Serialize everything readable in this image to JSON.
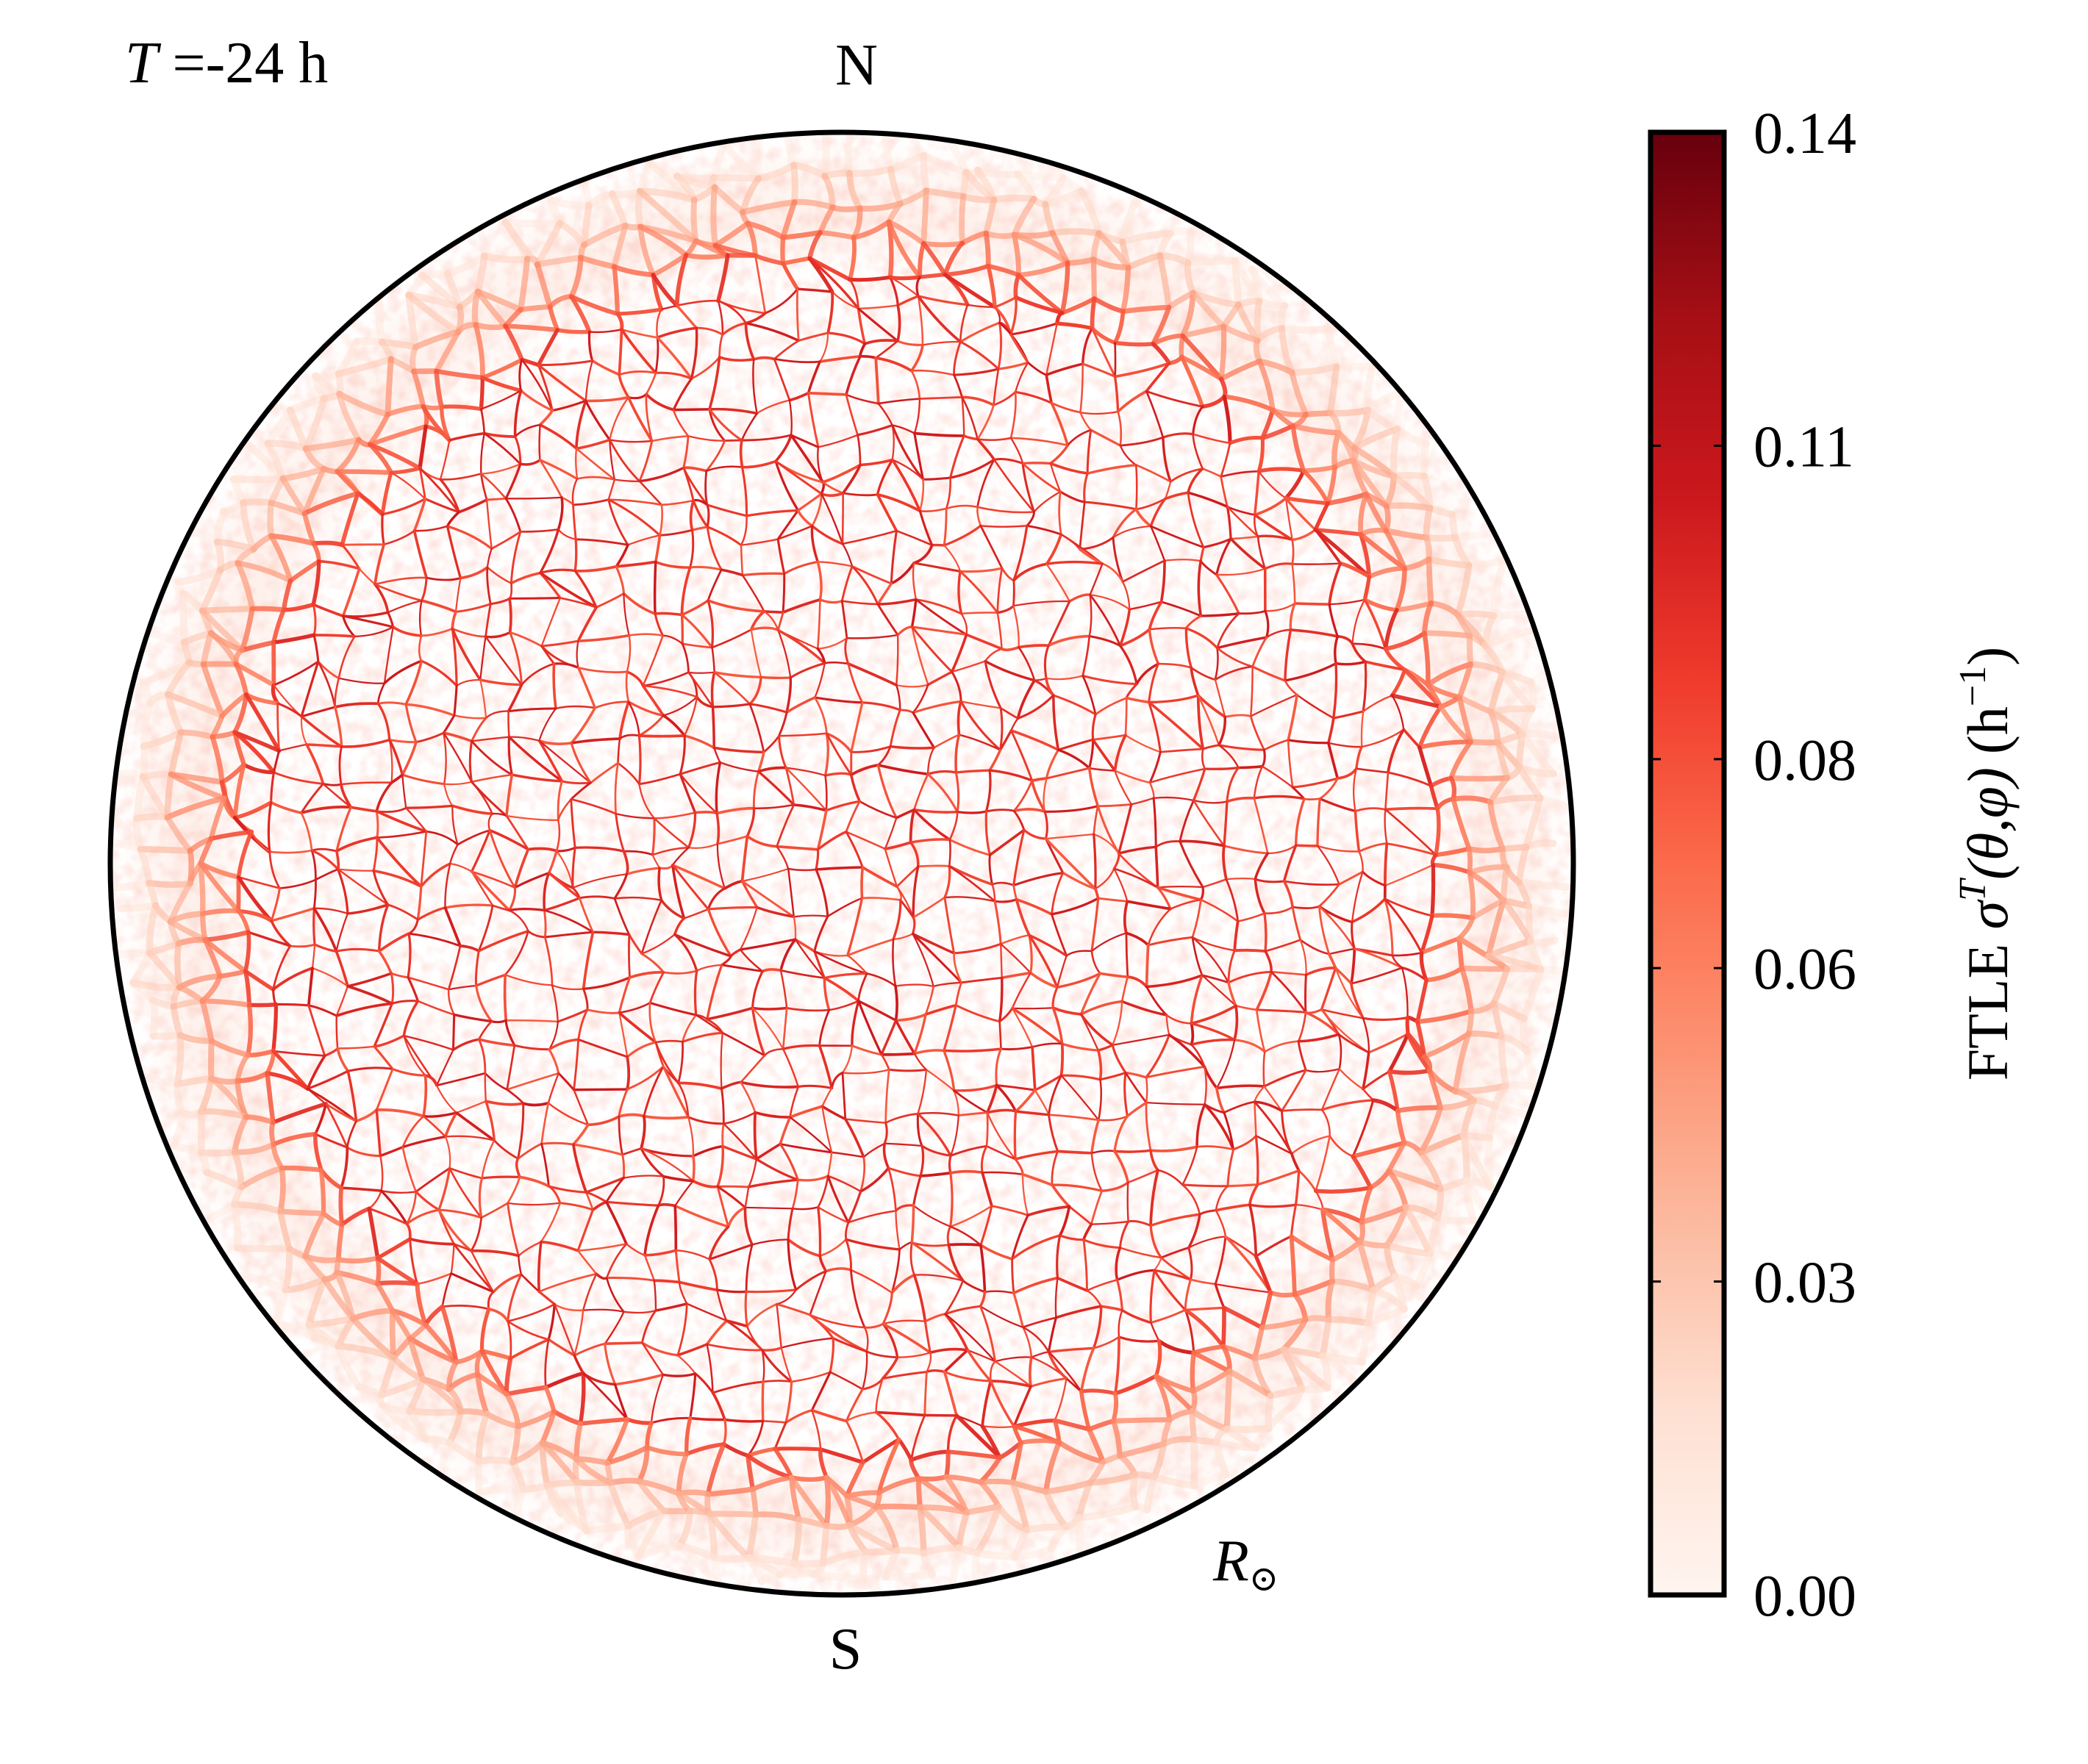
{
  "figure": {
    "time_label": {
      "var": "T",
      "rest": " =-24 h"
    },
    "north_label": "N",
    "south_label": "S",
    "radius_label": {
      "var": "R",
      "sub": "⊙"
    }
  },
  "colorbar": {
    "label_parts": {
      "prefix": "FTLE ",
      "sigma": "σ",
      "sup": "T",
      "args": "(θ,φ)",
      "unit_open": "(h",
      "unit_sup": "−1",
      "unit_close": ")"
    },
    "colormap": "Reds",
    "colors": [
      "#fff5f0",
      "#fee0d2",
      "#fcbba1",
      "#fc9272",
      "#fb6a4a",
      "#ef3b2c",
      "#cb181d",
      "#a50f15",
      "#67000d"
    ],
    "range": [
      0.0,
      0.14
    ],
    "ticks": [
      0.0,
      0.03,
      0.06,
      0.08,
      0.11,
      0.14
    ],
    "tick_labels": [
      "0.00",
      "0.03",
      "0.06",
      "0.08",
      "0.11",
      "0.14"
    ]
  },
  "chart_data": {
    "type": "heatmap",
    "projection": "orthographic solar disk",
    "quantity": "FTLE σ^T(θ,φ)",
    "unit": "h^-1",
    "value_range": [
      0.0,
      0.14
    ],
    "typical_ridge_value": 0.09,
    "limb_value": 0.01,
    "grid": false
  }
}
